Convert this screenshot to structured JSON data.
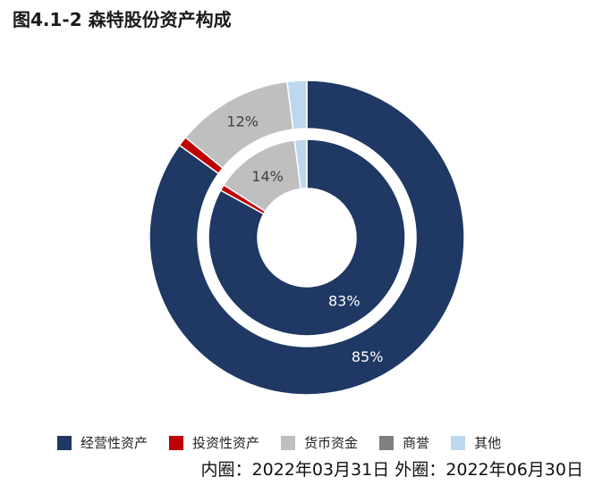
{
  "title": "图4.1-2 森特股份资产构成",
  "chart_data": {
    "type": "pie",
    "series": [
      {
        "name": "内圈",
        "values": [
          83,
          1,
          14,
          0,
          2
        ]
      },
      {
        "name": "外圈",
        "values": [
          85,
          1,
          12,
          0,
          2
        ]
      }
    ],
    "categories": [
      "经营性资产",
      "投资性资产",
      "货币资金",
      "商誉",
      "其他"
    ],
    "colors": [
      "#1F3864",
      "#C00000",
      "#BFBFBF",
      "#808080",
      "#BDD7EE"
    ],
    "labels": {
      "inner": [
        "83%",
        "",
        "14%",
        "",
        ""
      ],
      "outer": [
        "85%",
        "",
        "12%",
        "",
        ""
      ]
    },
    "legend_position": "bottom"
  },
  "note": "内圈：2022年03月31日 外圈：2022年06月30日"
}
